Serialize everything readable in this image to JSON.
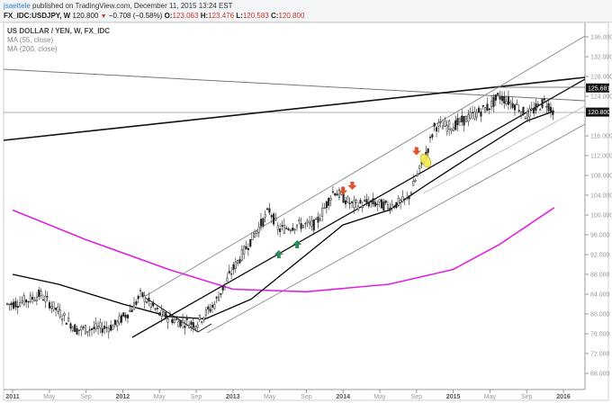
{
  "header": {
    "author": "jsaettele",
    "published_text": " published on TradingView.com, December 11, 2015 13:24 EST",
    "symbol_line": "FX_IDC:USDJPY, W",
    "last_price": "120.800",
    "change_arrow": "▼",
    "change": "−0.708 (−0.58%)",
    "o_label": "O:",
    "o_value": "123.063",
    "h_label": "H:",
    "h_value": "123.476",
    "l_label": "L:",
    "l_value": "120.583",
    "c_label": "C:",
    "c_value": "120.800"
  },
  "legend": {
    "title": "US DOLLAR / YEN, W, FX_IDC",
    "ma1": "MA (55, close)",
    "ma2": "MA (200, close)"
  },
  "colors": {
    "ma55": "#000000",
    "ma200": "#e020e0",
    "candles": "#222222",
    "arrow_down": "#e0532f",
    "arrow_up": "#2e8b57",
    "highlight": "#f2e84a",
    "trendline": "#111111",
    "channel": "#888888"
  },
  "chart_data": {
    "type": "line",
    "title": "US DOLLAR / YEN, W, FX_IDC",
    "xlabel": "",
    "ylabel": "",
    "ylim": [
      66,
      138
    ],
    "y_ticks": [
      "136.000",
      "132.000",
      "128.000",
      "124.000",
      "116.000",
      "112.000",
      "108.000",
      "104.000",
      "100.000",
      "96.000",
      "92.000",
      "88.000",
      "84.000",
      "80.000",
      "76.000",
      "72.000",
      "68.000"
    ],
    "x_ticks": [
      {
        "label": "2011",
        "bold": true
      },
      {
        "label": "May",
        "bold": false
      },
      {
        "label": "Sep",
        "bold": false
      },
      {
        "label": "2012",
        "bold": true
      },
      {
        "label": "May",
        "bold": false
      },
      {
        "label": "Sep",
        "bold": false
      },
      {
        "label": "2013",
        "bold": true
      },
      {
        "label": "May",
        "bold": false
      },
      {
        "label": "Sep",
        "bold": false
      },
      {
        "label": "2014",
        "bold": true
      },
      {
        "label": "May",
        "bold": false
      },
      {
        "label": "Sep",
        "bold": false
      },
      {
        "label": "2015",
        "bold": true
      },
      {
        "label": "May",
        "bold": false
      },
      {
        "label": "Sep",
        "bold": false
      },
      {
        "label": "2016",
        "bold": true
      }
    ],
    "price_tags": [
      {
        "label": "125.681",
        "value": 125.681
      },
      {
        "label": "120.800",
        "value": 120.8
      }
    ],
    "series": [
      {
        "name": "USDJPY close (approx.)",
        "x": [
          "2011-01",
          "2011-03",
          "2011-04",
          "2011-06",
          "2011-08",
          "2011-10",
          "2011-12",
          "2012-02",
          "2012-03",
          "2012-05",
          "2012-07",
          "2012-09",
          "2012-11",
          "2013-01",
          "2013-03",
          "2013-05",
          "2013-06",
          "2013-08",
          "2013-10",
          "2013-12",
          "2014-02",
          "2014-04",
          "2014-06",
          "2014-08",
          "2014-10",
          "2014-11",
          "2015-01",
          "2015-03",
          "2015-05",
          "2015-06",
          "2015-08",
          "2015-09",
          "2015-11",
          "2015-12"
        ],
        "values": [
          82,
          83,
          84,
          80.5,
          76.8,
          77,
          77.5,
          81,
          84,
          80,
          78.5,
          78,
          82,
          89,
          95,
          101,
          97,
          98,
          98,
          105,
          102,
          102.5,
          101.8,
          103,
          112,
          118,
          118,
          120,
          122,
          124,
          122,
          120,
          123,
          120.8
        ]
      },
      {
        "name": "MA (55, close)",
        "x": [
          "2011-01",
          "2011-06",
          "2012-01",
          "2012-06",
          "2012-10",
          "2013-03",
          "2013-09",
          "2014-01",
          "2014-06",
          "2014-10",
          "2015-03",
          "2015-09",
          "2015-12"
        ],
        "values": [
          88,
          86,
          82,
          79.5,
          79,
          83,
          92,
          98,
          101,
          106,
          112,
          119,
          121
        ]
      },
      {
        "name": "MA (200, close)",
        "x": [
          "2011-01",
          "2011-09",
          "2012-06",
          "2013-01",
          "2013-09",
          "2014-06",
          "2015-01",
          "2015-06",
          "2015-12"
        ],
        "values": [
          101,
          95,
          89,
          85,
          84.5,
          86,
          89,
          94,
          101.5
        ]
      }
    ],
    "annotations": [
      {
        "type": "arrow-up",
        "date": "2013-06",
        "price": 92
      },
      {
        "type": "arrow-up",
        "date": "2013-08",
        "price": 94
      },
      {
        "type": "arrow-down",
        "date": "2014-01",
        "price": 105
      },
      {
        "type": "arrow-down",
        "date": "2014-02",
        "price": 106
      },
      {
        "type": "arrow-down",
        "date": "2014-09",
        "price": 113
      },
      {
        "type": "highlight-ellipse",
        "date": "2014-10",
        "price": 111
      }
    ],
    "legend_position": "top-left",
    "grid": false
  }
}
